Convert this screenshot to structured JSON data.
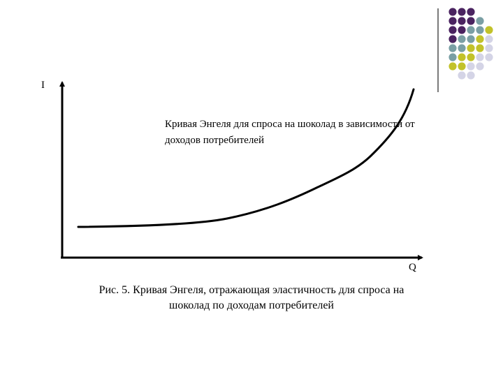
{
  "dot_colors": {
    "purple": "#4a2360",
    "teal": "#7a9fa4",
    "olive": "#c2c22a",
    "light": "#d4d4e6"
  },
  "dot_grid": [
    [
      "purple",
      "purple",
      "purple",
      "",
      ""
    ],
    [
      "purple",
      "purple",
      "purple",
      "teal",
      ""
    ],
    [
      "purple",
      "purple",
      "teal",
      "teal",
      "olive"
    ],
    [
      "purple",
      "teal",
      "teal",
      "olive",
      "light"
    ],
    [
      "teal",
      "teal",
      "olive",
      "olive",
      "light"
    ],
    [
      "teal",
      "olive",
      "olive",
      "light",
      "light"
    ],
    [
      "olive",
      "olive",
      "light",
      "light",
      ""
    ],
    [
      "",
      "light",
      "light",
      "",
      ""
    ]
  ],
  "diagram": {
    "y_axis_label": "I",
    "x_axis_label": "Q",
    "curve_label": "Кривая Энгеля для спроса на шоколад в зависимости от доходов потребителей"
  },
  "caption": {
    "line1": "Рис. 5. Кривая Энгеля, отражающая эластичность для спроса на",
    "line2": "шоколад по доходам потребителей"
  }
}
